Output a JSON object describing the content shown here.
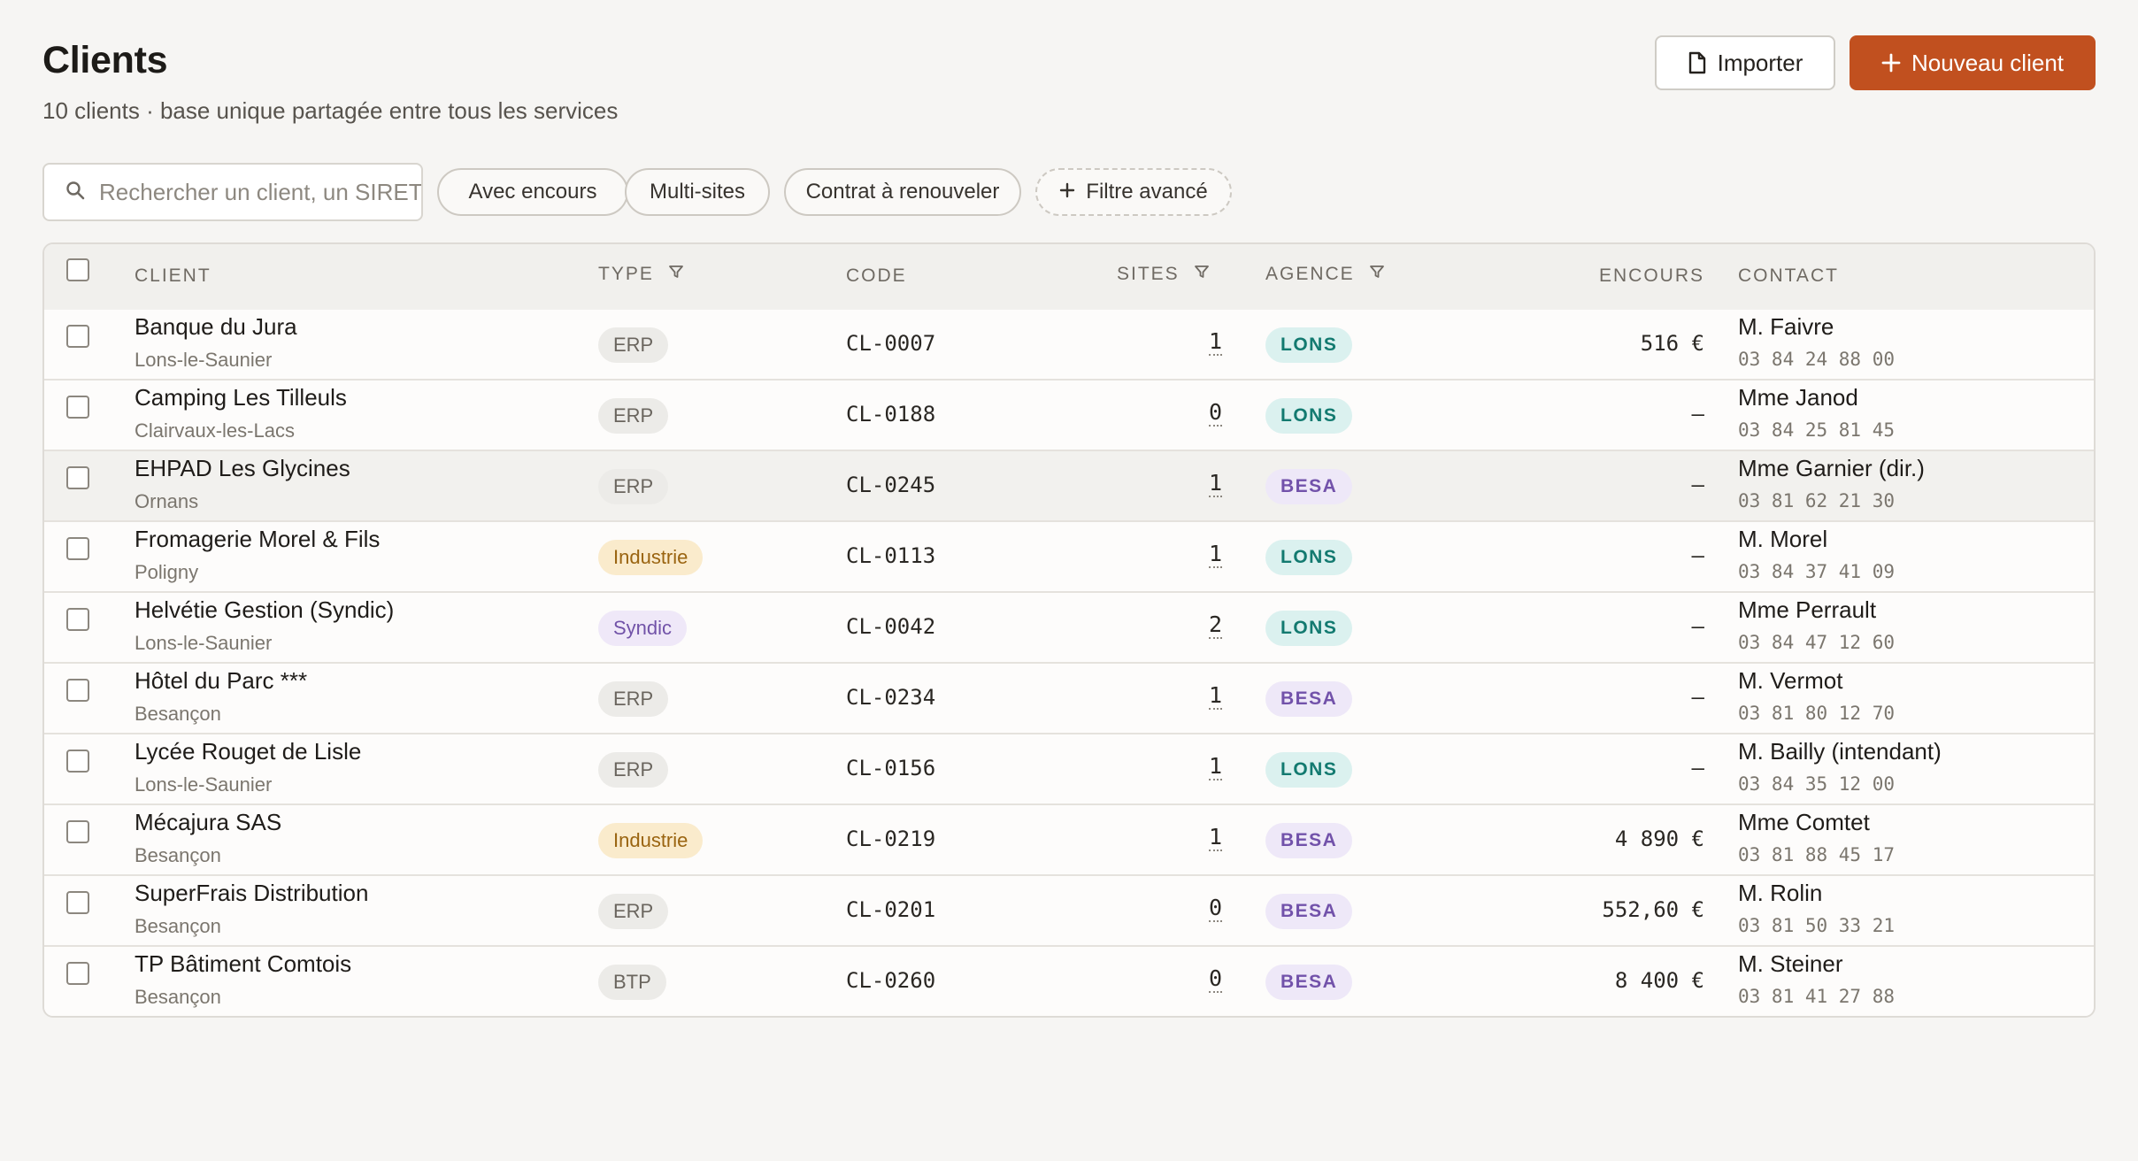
{
  "header": {
    "title": "Clients",
    "subtitle": "10 clients · base unique partagée entre tous les services",
    "import_label": "Importer",
    "new_label": "Nouveau client"
  },
  "filters": {
    "search_placeholder": "Rechercher un client, un SIRET, un code…",
    "chips": [
      "Avec encours",
      "Multi-sites",
      "Contrat à renouveler"
    ],
    "advanced_label": "Filtre avancé"
  },
  "table": {
    "columns": {
      "client": "Client",
      "type": "Type",
      "code": "Code",
      "sites": "Sites",
      "agence": "Agence",
      "encours": "Encours",
      "contact": "Contact"
    },
    "rows": [
      {
        "name": "Banque du Jura",
        "city": "Lons-le-Saunier",
        "type": "ERP",
        "type_style": "gray",
        "code": "CL-0007",
        "sites": "1",
        "agency": "LONS",
        "encours": "516 €",
        "contact": "M. Faivre",
        "phone": "03 84 24 88 00"
      },
      {
        "name": "Camping Les Tilleuls",
        "city": "Clairvaux-les-Lacs",
        "type": "ERP",
        "type_style": "gray",
        "code": "CL-0188",
        "sites": "0",
        "agency": "LONS",
        "encours": "—",
        "contact": "Mme Janod",
        "phone": "03 84 25 81 45"
      },
      {
        "name": "EHPAD Les Glycines",
        "city": "Ornans",
        "type": "ERP",
        "type_style": "gray",
        "code": "CL-0245",
        "sites": "1",
        "agency": "BESA",
        "encours": "—",
        "contact": "Mme Garnier (dir.)",
        "phone": "03 81 62 21 30"
      },
      {
        "name": "Fromagerie Morel & Fils",
        "city": "Poligny",
        "type": "Industrie",
        "type_style": "amber",
        "code": "CL-0113",
        "sites": "1",
        "agency": "LONS",
        "encours": "—",
        "contact": "M. Morel",
        "phone": "03 84 37 41 09"
      },
      {
        "name": "Helvétie Gestion (Syndic)",
        "city": "Lons-le-Saunier",
        "type": "Syndic",
        "type_style": "purple",
        "code": "CL-0042",
        "sites": "2",
        "agency": "LONS",
        "encours": "—",
        "contact": "Mme Perrault",
        "phone": "03 84 47 12 60"
      },
      {
        "name": "Hôtel du Parc ***",
        "city": "Besançon",
        "type": "ERP",
        "type_style": "gray",
        "code": "CL-0234",
        "sites": "1",
        "agency": "BESA",
        "encours": "—",
        "contact": "M. Vermot",
        "phone": "03 81 80 12 70"
      },
      {
        "name": "Lycée Rouget de Lisle",
        "city": "Lons-le-Saunier",
        "type": "ERP",
        "type_style": "gray",
        "code": "CL-0156",
        "sites": "1",
        "agency": "LONS",
        "encours": "—",
        "contact": "M. Bailly (intendant)",
        "phone": "03 84 35 12 00"
      },
      {
        "name": "Mécajura SAS",
        "city": "Besançon",
        "type": "Industrie",
        "type_style": "amber",
        "code": "CL-0219",
        "sites": "1",
        "agency": "BESA",
        "encours": "4 890 €",
        "contact": "Mme Comtet",
        "phone": "03 81 88 45 17"
      },
      {
        "name": "SuperFrais Distribution",
        "city": "Besançon",
        "type": "ERP",
        "type_style": "gray",
        "code": "CL-0201",
        "sites": "0",
        "agency": "BESA",
        "encours": "552,60 €",
        "contact": "M. Rolin",
        "phone": "03 81 50 33 21"
      },
      {
        "name": "TP Bâtiment Comtois",
        "city": "Besançon",
        "type": "BTP",
        "type_style": "gray",
        "code": "CL-0260",
        "sites": "0",
        "agency": "BESA",
        "encours": "8 400 €",
        "contact": "M. Steiner",
        "phone": "03 81 41 27 88"
      }
    ],
    "highlighted_row": 2
  },
  "colors": {
    "accent": "#c1501f",
    "lons": "#137a70",
    "besa": "#7252aa",
    "industrie": "#9a6410"
  },
  "icons": {
    "import": "file-icon",
    "new": "plus-icon",
    "search": "search-icon",
    "filter": "filter-icon",
    "advanced": "plus-icon"
  }
}
